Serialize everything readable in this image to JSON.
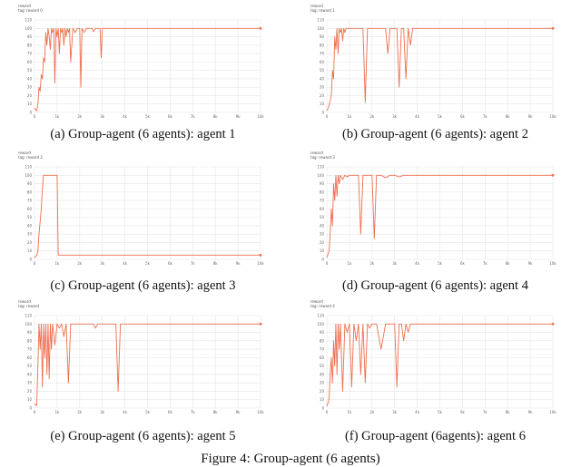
{
  "figure_caption": "Figure 4: Group-agent (6 agents)",
  "panels": [
    {
      "caption": "(a) Group-agent (6 agents): agent 1",
      "title1": "reward",
      "title2": "tag: reward 0"
    },
    {
      "caption": "(b) Group-agent (6 agents): agent 2",
      "title1": "reward",
      "title2": "tag: reward 1"
    },
    {
      "caption": "(c) Group-agent (6 agents): agent 3",
      "title1": "reward",
      "title2": "tag: reward 2"
    },
    {
      "caption": "(d) Group-agent (6 agents): agent 4",
      "title1": "reward",
      "title2": "tag: reward 3"
    },
    {
      "caption": "(e) Group-agent (6 agents): agent 5",
      "title1": "reward",
      "title2": "tag: reward"
    },
    {
      "caption": "(f) Group-agent (6agents): agent 6",
      "title1": "reward",
      "title2": "tag: reward 4"
    }
  ],
  "colors": {
    "line": "#ee6e4e",
    "grid": "#e4e4e4",
    "tick": "#666666"
  },
  "chart_data": [
    {
      "type": "line",
      "title": "reward",
      "subtitle": "tag: reward 0",
      "xlim": [
        0,
        10000
      ],
      "ylim": [
        0,
        110
      ],
      "grid": true,
      "xticks": [
        "0",
        "1k",
        "2k",
        "3k",
        "4k",
        "5k",
        "6k",
        "7k",
        "8k",
        "9k",
        "10k"
      ],
      "yticks": [
        "0",
        "10",
        "20",
        "30",
        "40",
        "50",
        "60",
        "70",
        "80",
        "90",
        "100",
        "110"
      ],
      "series": [
        {
          "x": [
            0,
            100,
            150,
            200,
            250,
            300,
            350,
            400,
            450,
            500,
            550,
            600,
            650,
            700,
            750,
            800,
            850,
            900,
            950,
            1000,
            1050,
            1100,
            1150,
            1200,
            1250,
            1300,
            1350,
            1400,
            1450,
            1500,
            1550,
            1600,
            1700,
            1800,
            1900,
            2000,
            2050,
            2100,
            2200,
            2300,
            2400,
            2500,
            2550,
            2600,
            2700,
            2800,
            2900,
            2950,
            3000,
            3050,
            3100,
            4000,
            10000
          ],
          "y": [
            5,
            2,
            10,
            30,
            25,
            45,
            40,
            65,
            60,
            95,
            80,
            100,
            90,
            75,
            100,
            95,
            100,
            35,
            100,
            90,
            100,
            70,
            100,
            95,
            100,
            80,
            100,
            90,
            100,
            95,
            100,
            60,
            100,
            95,
            100,
            100,
            30,
            100,
            95,
            100,
            100,
            100,
            100,
            96,
            100,
            100,
            100,
            65,
            100,
            100,
            100,
            100,
            100
          ]
        }
      ]
    },
    {
      "type": "line",
      "title": "reward",
      "subtitle": "tag: reward 1",
      "xlim": [
        0,
        10000
      ],
      "ylim": [
        0,
        110
      ],
      "grid": true,
      "xticks": [
        "0",
        "1k",
        "2k",
        "3k",
        "4k",
        "5k",
        "6k",
        "7k",
        "8k",
        "9k",
        "10k"
      ],
      "yticks": [
        "0",
        "10",
        "20",
        "30",
        "40",
        "50",
        "60",
        "70",
        "80",
        "90",
        "100",
        "110"
      ],
      "series": [
        {
          "x": [
            0,
            100,
            200,
            250,
            300,
            350,
            400,
            450,
            500,
            550,
            600,
            650,
            700,
            750,
            800,
            850,
            900,
            1000,
            1100,
            1200,
            1300,
            1400,
            1500,
            1600,
            1700,
            1800,
            2000,
            2200,
            2400,
            2600,
            2700,
            2800,
            3000,
            3100,
            3200,
            3300,
            3400,
            3500,
            3600,
            3700,
            3800,
            3900,
            4000,
            10000
          ],
          "y": [
            2,
            8,
            20,
            50,
            40,
            90,
            75,
            100,
            70,
            100,
            95,
            100,
            85,
            100,
            95,
            100,
            100,
            100,
            100,
            100,
            100,
            100,
            100,
            100,
            12,
            100,
            100,
            100,
            100,
            100,
            70,
            100,
            100,
            100,
            30,
            100,
            100,
            40,
            100,
            80,
            100,
            100,
            100,
            100
          ]
        }
      ]
    },
    {
      "type": "line",
      "title": "reward",
      "subtitle": "tag: reward 2",
      "xlim": [
        0,
        10000
      ],
      "ylim": [
        0,
        110
      ],
      "grid": true,
      "xticks": [
        "0",
        "1k",
        "2k",
        "3k",
        "4k",
        "5k",
        "6k",
        "7k",
        "8k",
        "9k",
        "10k"
      ],
      "yticks": [
        "0",
        "10",
        "20",
        "30",
        "40",
        "50",
        "60",
        "70",
        "80",
        "90",
        "100",
        "110"
      ],
      "series": [
        {
          "x": [
            0,
            100,
            150,
            200,
            250,
            300,
            350,
            400,
            450,
            500,
            550,
            600,
            700,
            800,
            900,
            1000,
            1050,
            1100,
            2000,
            3000,
            4000,
            5000,
            6000,
            7000,
            8000,
            9000,
            10000
          ],
          "y": [
            2,
            5,
            10,
            30,
            45,
            60,
            85,
            100,
            100,
            100,
            100,
            100,
            100,
            100,
            100,
            100,
            5,
            5,
            5,
            5,
            5,
            5,
            5,
            5,
            5,
            5,
            5
          ]
        }
      ]
    },
    {
      "type": "line",
      "title": "reward",
      "subtitle": "tag: reward 3",
      "xlim": [
        0,
        10000
      ],
      "ylim": [
        0,
        110
      ],
      "grid": true,
      "xticks": [
        "0",
        "1k",
        "2k",
        "3k",
        "4k",
        "5k",
        "6k",
        "7k",
        "8k",
        "9k",
        "10k"
      ],
      "yticks": [
        "0",
        "10",
        "20",
        "30",
        "40",
        "50",
        "60",
        "70",
        "80",
        "90",
        "100",
        "110"
      ],
      "series": [
        {
          "x": [
            0,
            100,
            150,
            200,
            250,
            300,
            350,
            400,
            450,
            500,
            550,
            600,
            700,
            800,
            900,
            1000,
            1200,
            1400,
            1500,
            1600,
            1800,
            2000,
            2100,
            2200,
            2400,
            2600,
            2800,
            3000,
            3200,
            3400,
            3600,
            3800,
            4000,
            10000
          ],
          "y": [
            2,
            10,
            30,
            60,
            40,
            90,
            70,
            100,
            75,
            100,
            90,
            100,
            95,
            100,
            98,
            100,
            100,
            100,
            30,
            100,
            100,
            100,
            25,
            100,
            100,
            97,
            100,
            100,
            98,
            100,
            100,
            100,
            100,
            100
          ]
        }
      ]
    },
    {
      "type": "line",
      "title": "reward",
      "subtitle": "tag: reward",
      "xlim": [
        0,
        10000
      ],
      "ylim": [
        0,
        110
      ],
      "grid": true,
      "xticks": [
        "0",
        "1k",
        "2k",
        "3k",
        "4k",
        "5k",
        "6k",
        "7k",
        "8k",
        "9k",
        "10k"
      ],
      "yticks": [
        "0",
        "10",
        "20",
        "30",
        "40",
        "50",
        "60",
        "70",
        "80",
        "90",
        "100",
        "110"
      ],
      "series": [
        {
          "x": [
            0,
            100,
            150,
            200,
            250,
            300,
            350,
            400,
            450,
            500,
            550,
            600,
            650,
            700,
            750,
            800,
            900,
            1000,
            1100,
            1200,
            1300,
            1400,
            1500,
            1600,
            1700,
            1800,
            1900,
            2000,
            2200,
            2400,
            2600,
            2700,
            2800,
            3000,
            3200,
            3400,
            3600,
            3700,
            3800,
            3900,
            4000,
            10000
          ],
          "y": [
            5,
            3,
            50,
            100,
            70,
            100,
            25,
            100,
            60,
            100,
            40,
            100,
            35,
            100,
            70,
            100,
            75,
            100,
            95,
            100,
            85,
            100,
            30,
            100,
            100,
            100,
            100,
            100,
            100,
            100,
            100,
            95,
            100,
            100,
            100,
            100,
            100,
            20,
            100,
            100,
            100,
            100
          ]
        }
      ]
    },
    {
      "type": "line",
      "title": "reward",
      "subtitle": "tag: reward 4",
      "xlim": [
        0,
        10000
      ],
      "ylim": [
        0,
        110
      ],
      "grid": true,
      "xticks": [
        "0",
        "1k",
        "2k",
        "3k",
        "4k",
        "5k",
        "6k",
        "7k",
        "8k",
        "9k",
        "10k"
      ],
      "yticks": [
        "0",
        "10",
        "20",
        "30",
        "40",
        "50",
        "60",
        "70",
        "80",
        "90",
        "100",
        "110"
      ],
      "series": [
        {
          "x": [
            0,
            100,
            150,
            200,
            250,
            300,
            350,
            400,
            450,
            500,
            550,
            600,
            700,
            800,
            900,
            1000,
            1100,
            1200,
            1300,
            1400,
            1500,
            1600,
            1700,
            1800,
            1900,
            2000,
            2200,
            2400,
            2600,
            2800,
            3000,
            3100,
            3200,
            3300,
            3400,
            3500,
            3600,
            3700,
            3800,
            4000,
            10000
          ],
          "y": [
            2,
            10,
            40,
            60,
            30,
            80,
            50,
            100,
            40,
            100,
            70,
            100,
            20,
            100,
            90,
            100,
            25,
            100,
            80,
            100,
            40,
            100,
            30,
            100,
            95,
            100,
            100,
            70,
            100,
            100,
            100,
            25,
            100,
            100,
            80,
            100,
            90,
            100,
            100,
            100,
            100
          ]
        }
      ]
    }
  ]
}
